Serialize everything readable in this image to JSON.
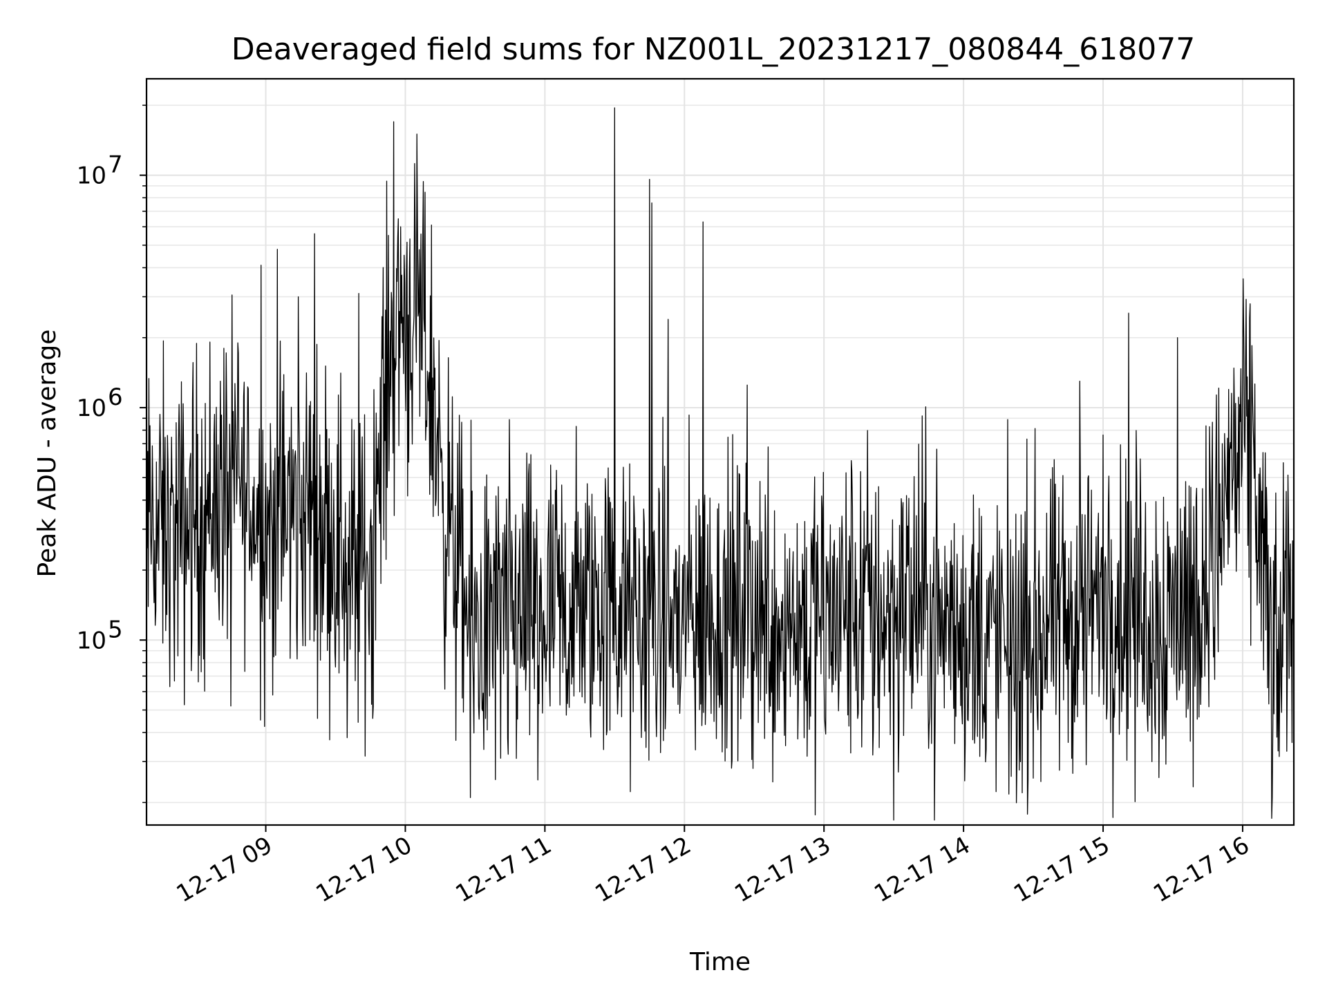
{
  "chart_data": {
    "type": "line",
    "title": "Deaveraged field sums for NZ001L_20231217_080844_618077",
    "xlabel": "Time",
    "ylabel": "Peak ADU - average",
    "yscale": "log",
    "ylim": [
      16000,
      26000000
    ],
    "xlim": [
      "2023-12-17 08:08:44",
      "2023-12-17 16:22:00"
    ],
    "x_ticks": [
      "12-17 09",
      "12-17 10",
      "12-17 11",
      "12-17 12",
      "12-17 13",
      "12-17 14",
      "12-17 15",
      "12-17 16"
    ],
    "y_ticks": [
      {
        "value": 100000,
        "label": "10^5",
        "base": "10",
        "exp": "5"
      },
      {
        "value": 1000000,
        "label": "10^6",
        "base": "10",
        "exp": "6"
      },
      {
        "value": 10000000,
        "label": "10^7",
        "base": "10",
        "exp": "7"
      }
    ],
    "grid": true,
    "line_color": "#000000",
    "series": [
      {
        "values_note": "envelope of dense time series",
        "points": [
          [
            "08:09",
            330000
          ],
          [
            "08:15",
            300000
          ],
          [
            "08:20",
            280000
          ],
          [
            "08:25",
            310000
          ],
          [
            "08:30",
            340000
          ],
          [
            "08:35",
            360000
          ],
          [
            "08:40",
            430000
          ],
          [
            "08:45",
            470000
          ],
          [
            "08:50",
            420000
          ],
          [
            "08:55",
            350000
          ],
          [
            "09:00",
            320000
          ],
          [
            "09:05",
            330000
          ],
          [
            "09:10",
            360000
          ],
          [
            "09:15",
            310000
          ],
          [
            "09:20",
            380000
          ],
          [
            "09:25",
            330000
          ],
          [
            "09:30",
            270000
          ],
          [
            "09:35",
            220000
          ],
          [
            "09:40",
            180000
          ],
          [
            "09:45",
            250000
          ],
          [
            "09:50",
            900000
          ],
          [
            "09:55",
            2000000
          ],
          [
            "10:00",
            2600000
          ],
          [
            "10:05",
            2300000
          ],
          [
            "10:10",
            1600000
          ],
          [
            "10:15",
            600000
          ],
          [
            "10:20",
            250000
          ],
          [
            "10:25",
            140000
          ],
          [
            "10:30",
            110000
          ],
          [
            "10:40",
            120000
          ],
          [
            "10:50",
            130000
          ],
          [
            "11:00",
            125000
          ],
          [
            "11:10",
            130000
          ],
          [
            "11:20",
            140000
          ],
          [
            "11:30",
            135000
          ],
          [
            "11:40",
            120000
          ],
          [
            "11:50",
            115000
          ],
          [
            "12:00",
            125000
          ],
          [
            "12:10",
            130000
          ],
          [
            "12:20",
            120000
          ],
          [
            "12:30",
            140000
          ],
          [
            "12:40",
            130000
          ],
          [
            "12:50",
            125000
          ],
          [
            "13:00",
            115000
          ],
          [
            "13:10",
            135000
          ],
          [
            "13:20",
            140000
          ],
          [
            "13:30",
            130000
          ],
          [
            "13:40",
            150000
          ],
          [
            "13:50",
            120000
          ],
          [
            "14:00",
            110000
          ],
          [
            "14:10",
            100000
          ],
          [
            "14:20",
            95000
          ],
          [
            "14:30",
            110000
          ],
          [
            "14:40",
            120000
          ],
          [
            "14:50",
            130000
          ],
          [
            "15:00",
            150000
          ],
          [
            "15:10",
            140000
          ],
          [
            "15:20",
            130000
          ],
          [
            "15:30",
            125000
          ],
          [
            "15:40",
            150000
          ],
          [
            "15:50",
            300000
          ],
          [
            "15:55",
            550000
          ],
          [
            "16:00",
            650000
          ],
          [
            "16:05",
            550000
          ],
          [
            "16:10",
            150000
          ],
          [
            "16:14",
            60000
          ],
          [
            "16:18",
            130000
          ],
          [
            "16:22",
            170000
          ]
        ],
        "spikes": [
          [
            "08:48",
            1900000
          ],
          [
            "08:58",
            4100000
          ],
          [
            "09:05",
            4800000
          ],
          [
            "09:14",
            3000000
          ],
          [
            "09:21",
            5600000
          ],
          [
            "09:40",
            3100000
          ],
          [
            "09:55",
            17000000
          ],
          [
            "09:58",
            6000000
          ],
          [
            "11:30",
            19500000
          ],
          [
            "11:45",
            9600000
          ],
          [
            "11:46",
            7600000
          ],
          [
            "11:53",
            2400000
          ],
          [
            "12:08",
            6300000
          ],
          [
            "12:27",
            1250000
          ],
          [
            "14:50",
            1300000
          ],
          [
            "15:11",
            2550000
          ],
          [
            "15:32",
            2000000
          ],
          [
            "16:04",
            1850000
          ]
        ],
        "dips": [
          [
            "08:45",
            52000
          ],
          [
            "09:03",
            58000
          ],
          [
            "09:35",
            38000
          ],
          [
            "09:46",
            46000
          ],
          [
            "10:28",
            21000
          ],
          [
            "10:41",
            31000
          ],
          [
            "10:57",
            25000
          ],
          [
            "13:21",
            32000
          ],
          [
            "14:23",
            31000
          ],
          [
            "15:21",
            30000
          ],
          [
            "16:13",
            44000
          ]
        ]
      }
    ]
  }
}
